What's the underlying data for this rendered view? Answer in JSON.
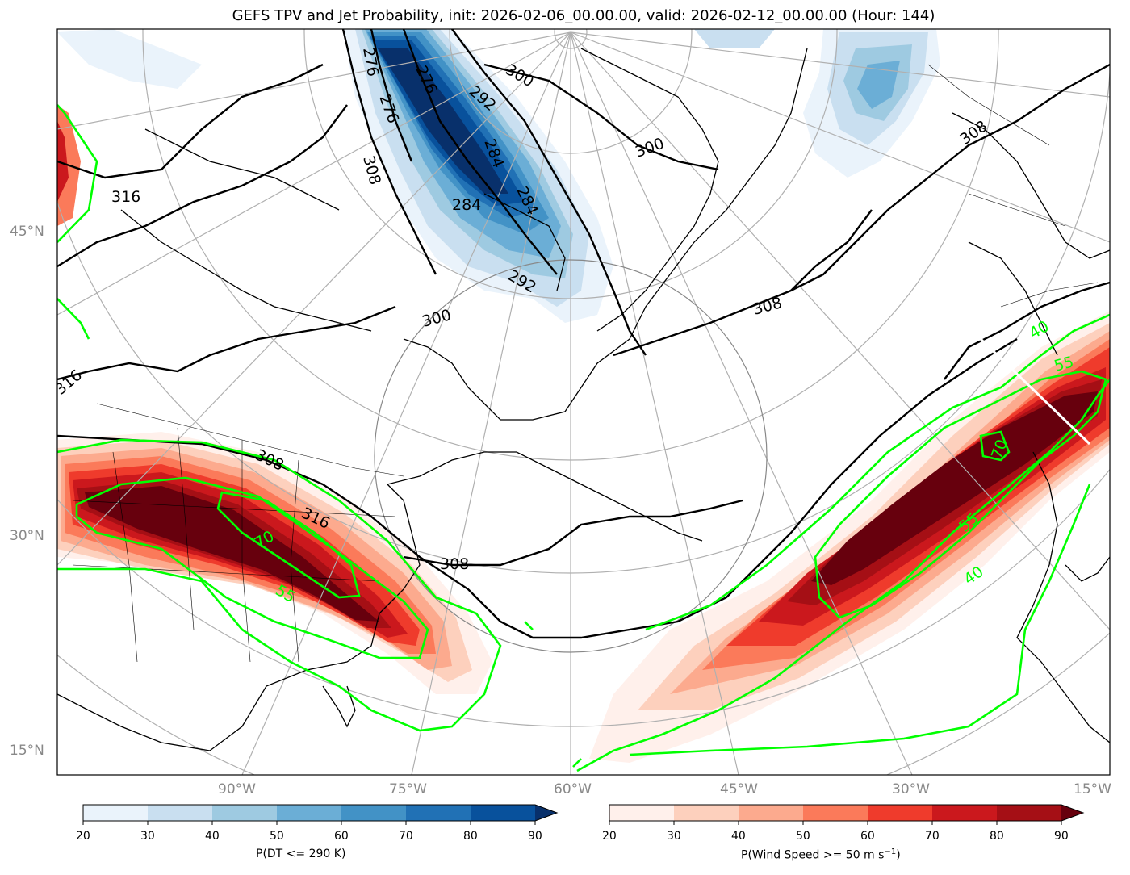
{
  "title": "GEFS TPV and Jet Probability, init: 2026-02-06_00.00.00, valid: 2026-02-12_00.00.00 (Hour: 144)",
  "lat_labels": [
    "45°N",
    "30°N",
    "15°N"
  ],
  "lon_labels": [
    "90°W",
    "75°W",
    "60°W",
    "45°W",
    "30°W",
    "15°W"
  ],
  "theta_contours": [
    "276",
    "276",
    "276",
    "284",
    "284",
    "284",
    "292",
    "292",
    "300",
    "300",
    "300",
    "308",
    "308",
    "308",
    "308",
    "316",
    "316",
    "316"
  ],
  "jet_contours": [
    "40",
    "40",
    "55",
    "55",
    "55",
    "70",
    "70"
  ],
  "colorbar_dt": {
    "label": "P(DT <= 290 K)",
    "ticks": [
      "20",
      "30",
      "40",
      "50",
      "60",
      "70",
      "80",
      "90"
    ],
    "colors": [
      "#eaf3fb",
      "#c9dff0",
      "#9ecae1",
      "#6baed6",
      "#4292c6",
      "#2171b5",
      "#08519c",
      "#08306b"
    ]
  },
  "colorbar_wind": {
    "label": "P(Wind Speed >= 50 m s",
    "label_sup": "−1",
    "label_end": ")",
    "ticks": [
      "20",
      "30",
      "40",
      "50",
      "60",
      "70",
      "80",
      "90"
    ],
    "colors": [
      "#fff0eb",
      "#fdd0bd",
      "#fcaa8e",
      "#fb7a5a",
      "#ef3b2c",
      "#cb181d",
      "#a50f15",
      "#67000d"
    ]
  },
  "contour_colors": {
    "theta": "#000000",
    "jet": "#00ff00",
    "grid": "#b0b0b0"
  }
}
